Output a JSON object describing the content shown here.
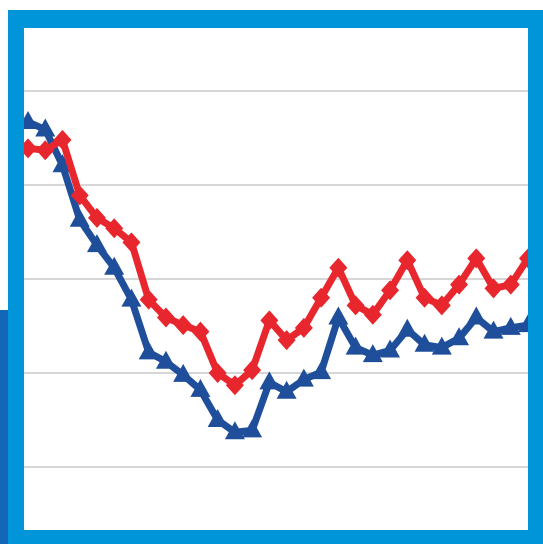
{
  "chart_data": {
    "type": "line",
    "categories": [
      null,
      null,
      null,
      null,
      null,
      null,
      null,
      null,
      null,
      null,
      null,
      null,
      null,
      null,
      null,
      null,
      null,
      null,
      null,
      null,
      null,
      null,
      null,
      null,
      null,
      null,
      null,
      null,
      null,
      null
    ],
    "series": [
      {
        "color": "#1f4e9a",
        "marker": "triangle",
        "values": [
          4.67,
          4.59,
          4.21,
          3.63,
          3.36,
          3.12,
          2.78,
          2.22,
          2.12,
          1.98,
          1.82,
          1.5,
          1.37,
          1.39,
          1.9,
          1.8,
          1.93,
          2.01,
          2.59,
          2.27,
          2.19,
          2.24,
          2.46,
          2.3,
          2.27,
          2.37,
          2.59,
          2.44,
          2.48,
          2.51
        ]
      },
      {
        "color": "#e8262d",
        "marker": "diamond",
        "values": [
          4.39,
          4.37,
          4.48,
          3.89,
          3.65,
          3.54,
          3.39,
          2.78,
          2.59,
          2.51,
          2.44,
          2.0,
          1.87,
          2.03,
          2.56,
          2.35,
          2.48,
          2.8,
          3.12,
          2.72,
          2.62,
          2.88,
          3.2,
          2.8,
          2.72,
          2.94,
          3.22,
          2.9,
          2.94,
          3.22
        ]
      }
    ],
    "ylim": [
      0.33,
      5.67
    ],
    "yticks": [
      1,
      2,
      3,
      4,
      5
    ],
    "grid": true
  }
}
